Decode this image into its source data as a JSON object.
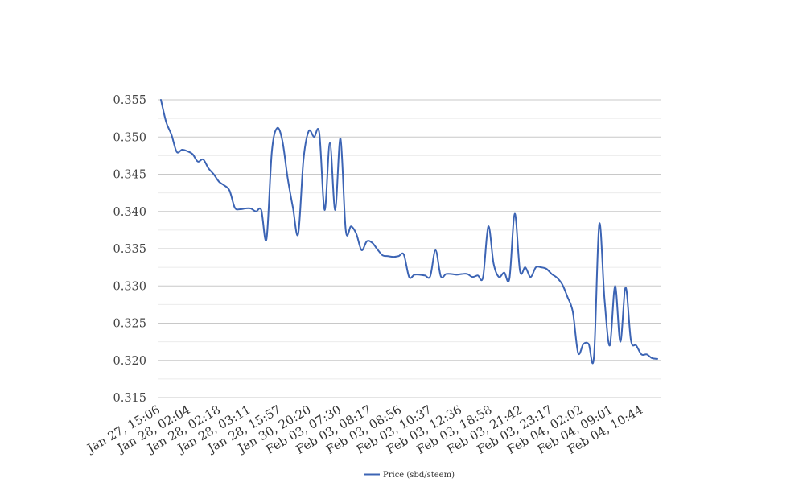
{
  "chart_data": {
    "type": "line",
    "title": "",
    "xlabel": "",
    "ylabel": "",
    "ylim": [
      0.315,
      0.355
    ],
    "yticks": [
      "0.315",
      "0.320",
      "0.325",
      "0.330",
      "0.335",
      "0.340",
      "0.345",
      "0.350",
      "0.355"
    ],
    "xtick_labels": [
      "Jan 27, 15:06",
      "Jan 28, 02:04",
      "Jan 28, 02:18",
      "Jan 28, 03:11",
      "Jan 28, 15:57",
      "Jan 30, 20:20",
      "Feb 03, 07:30",
      "Feb 03, 08:17",
      "Feb 03, 08:56",
      "Feb 03, 10:37",
      "Feb 03, 12:36",
      "Feb 03, 18:58",
      "Feb 03, 21:42",
      "Feb 03, 23:17",
      "Feb 04, 02:02",
      "Feb 04, 09:01",
      "Feb 04, 10:44"
    ],
    "grid": true,
    "legend_position": "bottom-center",
    "series": [
      {
        "name": "Price (sbd/steem)",
        "color": "#3c64b4",
        "values": [
          0.355,
          0.352,
          0.3503,
          0.348,
          0.3483,
          0.3481,
          0.3477,
          0.3467,
          0.347,
          0.3458,
          0.345,
          0.344,
          0.3435,
          0.3428,
          0.3405,
          0.3403,
          0.3404,
          0.3404,
          0.34,
          0.3402,
          0.3363,
          0.348,
          0.3512,
          0.3495,
          0.3445,
          0.3405,
          0.337,
          0.347,
          0.3508,
          0.35,
          0.3505,
          0.3402,
          0.3492,
          0.3402,
          0.3498,
          0.3375,
          0.338,
          0.337,
          0.3348,
          0.336,
          0.3358,
          0.3349,
          0.3341,
          0.334,
          0.3339,
          0.334,
          0.3342,
          0.3312,
          0.3315,
          0.3315,
          0.3314,
          0.3313,
          0.3348,
          0.3313,
          0.3316,
          0.3316,
          0.3315,
          0.3316,
          0.3316,
          0.3312,
          0.3314,
          0.3312,
          0.338,
          0.333,
          0.3312,
          0.3318,
          0.331,
          0.3397,
          0.332,
          0.3325,
          0.3312,
          0.3325,
          0.3325,
          0.3323,
          0.3316,
          0.3311,
          0.3302,
          0.3285,
          0.3265,
          0.321,
          0.3222,
          0.3222,
          0.3205,
          0.3383,
          0.3282,
          0.322,
          0.33,
          0.3225,
          0.3298,
          0.3227,
          0.322,
          0.3208,
          0.3208,
          0.3203,
          0.3202
        ]
      }
    ]
  }
}
